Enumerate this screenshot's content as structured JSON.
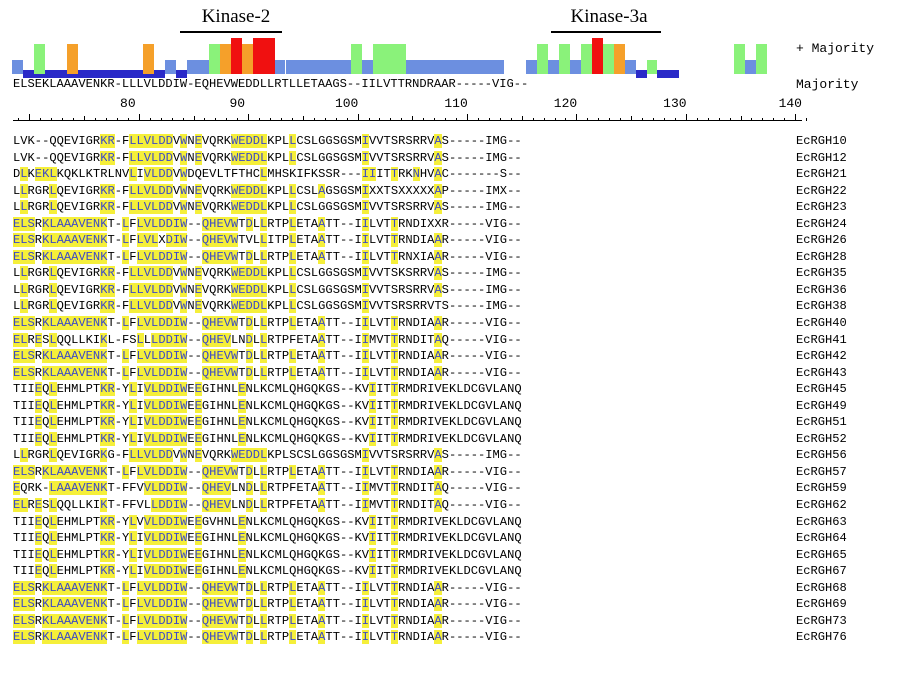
{
  "motifs": [
    {
      "label": "Kinase-2"
    },
    {
      "label": "Kinase-3a"
    }
  ],
  "legend": {
    "plus_majority": "+ Majority",
    "majority": "Majority"
  },
  "majority_sequence": "ELSEKLAAAVENKR-LLLVLDDIW-EQHEVWEDDLLRTLLETAAGS--IILVTTRNDRAAR-----VIG--",
  "axis_numbers": [
    "80",
    "90",
    "100",
    "110",
    "120",
    "130",
    "140"
  ],
  "colors": {
    "highlight": "#f5ef3a",
    "highlight_text": "#3b49c8",
    "bar_blue": "#6c8fe0",
    "bar_dark_blue": "#2a2ac8",
    "bar_green": "#8af27a",
    "bar_orange": "#f5a02a",
    "bar_red": "#f01010"
  },
  "rows": [
    {
      "name": "EcRGH10",
      "seq": "LVK--QQEVIGRKR-FLLVLDDVWNEVQRKWEDDLKPLLCSLGGSGSMIVVTSRSRRVAS-----IMG--"
    },
    {
      "name": "EcRGH12",
      "seq": "LVK--QQEVIGRKR-FLLVLDDVWNEVQRKWEDDLKPLLCSLGGSGSMIVVTSRSRRVAS-----IMG--"
    },
    {
      "name": "EcRGH21",
      "seq": "DLKEKLKQKLKTRLNVLIVLDDVWDQEVLTFTHCLMHSKIFKSSR---IIITTRKNHVAC-------S--"
    },
    {
      "name": "EcRGH22",
      "seq": "LLRGRLQEVIGRKR-FLLVLDDVWNEVQRKWEDDLKPLLCSLAGSGSMIXXTSXXXXXAP-----IMX--"
    },
    {
      "name": "EcRGH23",
      "seq": "LLRGRLQEVIGRKR-FLLVLDDVWNEVQRKWEDDLKPLLCSLGGSGSMIVVTSRSRRVAS-----IMG--"
    },
    {
      "name": "EcRGH24",
      "seq": "ELSRKLAAAVENKT-LFLVLDDIW--QHEVWTDLLRTPLETAATT--IILVTTRNDIXXR-----VIG--"
    },
    {
      "name": "EcRGH26",
      "seq": "ELSRKLAAAVENKT-LFLVLXDIW--QHEVWTVLLITPLETAATT--IILVTTRNDIAAR-----VIG--"
    },
    {
      "name": "EcRGH28",
      "seq": "ELSRKLAAAVENKT-LFLVLDDIW--QHEVWTDLLRTPLETAATT--IILVTTRNXIAAR-----VIG--"
    },
    {
      "name": "EcRGH35",
      "seq": "LLRGRLQEVIGRKR-FLLVLDDVWNEVQRKWEDDLKPLLCSLGGSGSMIVVTSKSRRVAS-----IMG--"
    },
    {
      "name": "EcRGH36",
      "seq": "LLRGRLQEVIGRKR-FLLVLDDVWNEVQRKWEDDLKPLLCSLGGSGSMIVVTSRSRRVAS-----IMG--"
    },
    {
      "name": "EcRGH38",
      "seq": "LLRGRLQEVIGRKR-FLLVLDDVWNEVQRKWEDDLKPLLCSLGGSGSMIVVTSRSRRVTS-----IMG--"
    },
    {
      "name": "EcRGH40",
      "seq": "ELSRKLAAAVENKT-LFLVLDDIW--QHEVWTDLLRTPLETAATT--IILVTTRNDIAAR-----VIG--"
    },
    {
      "name": "EcRGH41",
      "seq": "ELRESLQQLLKIKL-FSLLLDDIW--QHEVLNDLLRTPFETAATT--IIMVTTRNDITAQ-----VIG--"
    },
    {
      "name": "EcRGH42",
      "seq": "ELSRKLAAAVENKT-LFLVLDDIW--QHEVWTDLLRTPLETAATT--IILVTTRNDIAAR-----VIG--"
    },
    {
      "name": "EcRGH43",
      "seq": "ELSRKLAAAVENKT-LFLVLDDIW--QHEVWTDLLRTPLETAATT--IILVTTRNDIAAR-----VIG--"
    },
    {
      "name": "EcRGH45",
      "seq": "TIIEQLEHMLPTKR-YLIVLDDIWEEGIHNLENLKCMLQHGQKGS--KVIITTRMDRIVEKLDCGVLANQ"
    },
    {
      "name": "EcRGH49",
      "seq": "TIIEQLEHMLPTKR-YLIVLDDIWEEGIHNLENLKCMLQHGQKGS--KVIITTRMDRIVEKLDCGVLANQ"
    },
    {
      "name": "EcRGH51",
      "seq": "TIIEQLEHMLPTKR-YLIVLDDIWEEGIHNLENLKCMLQHGQKGS--KVIITTRMDRIVEKLDCGVLANQ"
    },
    {
      "name": "EcRGH52",
      "seq": "TIIEQLEHMLPTKR-YLIVLDDIWEEGIHNLENLKCMLQHGQKGS--KVIITTRMDRIVEKLDCGVLANQ"
    },
    {
      "name": "EcRGH56",
      "seq": "LLRGRLQEVIGRKG-FLLVLDDVWNEVQRKWEDDLKPLSCSLGGSGSMIVVTSRSRRVAS-----IMG--"
    },
    {
      "name": "EcRGH57",
      "seq": "ELSRKLAAAVENKT-LFLVLDDIW--QHEVWTDLLRTPLETAATT--IILVTTRNDIAAR-----VIG--"
    },
    {
      "name": "EcRGH59",
      "seq": "EQRK-LAAAVENKT-FFVVLDDIW--QHEVLNDLLRTPFETAATT--IIMVTTRNDITAQ-----VIG--"
    },
    {
      "name": "EcRGH62",
      "seq": "ELRESLQQLLKIKT-FFVLLDDIW--QHEVLNDLLRTPFETAATT--IIMVTTRNDITAQ-----VIG--"
    },
    {
      "name": "EcRGH63",
      "seq": "TIIEQLEHMLPTKR-YLVVLDDIWEEGVHNLENLKCMLQHGQKGS--KVIITTRMDRIVEKLDCGVLANQ"
    },
    {
      "name": "EcRGH64",
      "seq": "TIIEQLEHMLPTKR-YLIVLDDIWEEGIHNLENLKCMLQHGQKGS--KVIITTRMDRIVEKLDCGVLANQ"
    },
    {
      "name": "EcRGH65",
      "seq": "TIIEQLEHMLPTKR-YLIVLDDIWEEGIHNLENLKCMLQHGQKGS--KVIITTRMDRIVEKLDCGVLANQ"
    },
    {
      "name": "EcRGH67",
      "seq": "TIIEQLEHMLPTKR-YLIVLDDIWEEGIHNLENLKCMLQHGQKGS--KVIITTRMDRIVEKLDCGVLANQ"
    },
    {
      "name": "EcRGH68",
      "seq": "ELSRKLAAAVENKT-LFLVLDDIW--QHEVWTDLLRTPLETAATT--IILVTTRNDIAAR-----VIG--"
    },
    {
      "name": "EcRGH69",
      "seq": "ELSRKLAAAVENKT-LFLVLDDIW--QHEVWTDLLRTPLETAATT--IILVTTRNDIAAR-----VIG--"
    },
    {
      "name": "EcRGH73",
      "seq": "ELSRKLAAAVENKT-LFLVLDDIW--QHEVWTDLLRTPLETAATT--IILVTTRNDIAAR-----VIG--"
    },
    {
      "name": "EcRGH76",
      "seq": "ELSRKLAAAVENKT-LFLVLDDIW--QHEVWTDLLRTPLETAATT--IILVTTRNDIAAR-----VIG--"
    }
  ]
}
